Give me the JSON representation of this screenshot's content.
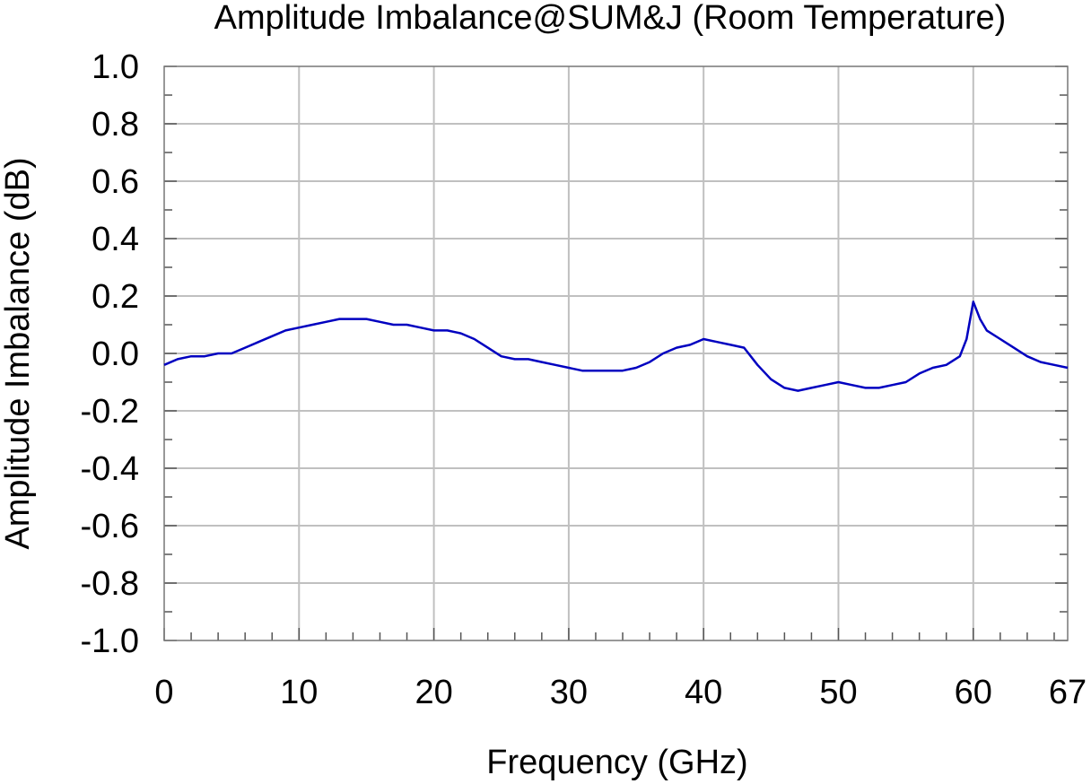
{
  "chart_data": {
    "type": "line",
    "title": "Amplitude Imbalance@SUM&J (Room Temperature)",
    "xlabel": "Frequency (GHz)",
    "ylabel": "Amplitude Imbalance (dB)",
    "xlim": [
      0,
      67
    ],
    "ylim": [
      -1.0,
      1.0
    ],
    "x_ticks": [
      0,
      10,
      20,
      30,
      40,
      50,
      60,
      67
    ],
    "x_tick_labels": [
      "0",
      "10",
      "20",
      "30",
      "40",
      "50",
      "60",
      "67"
    ],
    "y_ticks": [
      1.0,
      0.8,
      0.6,
      0.4,
      0.2,
      0.0,
      -0.2,
      -0.4,
      -0.6,
      -0.8,
      -1.0
    ],
    "y_tick_labels": [
      "1.0",
      "0.8",
      "0.6",
      "0.4",
      "0.2",
      "0.0",
      "-0.2",
      "-0.4",
      "-0.6",
      "-0.8",
      "-1.0"
    ],
    "grid": true,
    "line_color": "#0000c0",
    "series": [
      {
        "x": [
          0,
          1,
          2,
          3,
          4,
          5,
          6,
          7,
          8,
          9,
          10,
          11,
          12,
          13,
          14,
          15,
          16,
          17,
          18,
          19,
          20,
          21,
          22,
          23,
          24,
          25,
          26,
          27,
          28,
          29,
          30,
          31,
          32,
          33,
          34,
          35,
          36,
          37,
          38,
          39,
          40,
          41,
          42,
          43,
          44,
          45,
          46,
          47,
          48,
          49,
          50,
          51,
          52,
          53,
          54,
          55,
          56,
          57,
          58,
          59,
          59.5,
          60,
          60.5,
          61,
          62,
          63,
          64,
          65,
          66,
          67
        ],
        "y": [
          -0.04,
          -0.02,
          -0.01,
          -0.01,
          0.0,
          0.0,
          0.02,
          0.04,
          0.06,
          0.08,
          0.09,
          0.1,
          0.11,
          0.12,
          0.12,
          0.12,
          0.11,
          0.1,
          0.1,
          0.09,
          0.08,
          0.08,
          0.07,
          0.05,
          0.02,
          -0.01,
          -0.02,
          -0.02,
          -0.03,
          -0.04,
          -0.05,
          -0.06,
          -0.06,
          -0.06,
          -0.06,
          -0.05,
          -0.03,
          0.0,
          0.02,
          0.03,
          0.05,
          0.04,
          0.03,
          0.02,
          -0.04,
          -0.09,
          -0.12,
          -0.13,
          -0.12,
          -0.11,
          -0.1,
          -0.11,
          -0.12,
          -0.12,
          -0.11,
          -0.1,
          -0.07,
          -0.05,
          -0.04,
          -0.01,
          0.05,
          0.18,
          0.12,
          0.08,
          0.05,
          0.02,
          -0.01,
          -0.03,
          -0.04,
          -0.05
        ]
      }
    ]
  }
}
